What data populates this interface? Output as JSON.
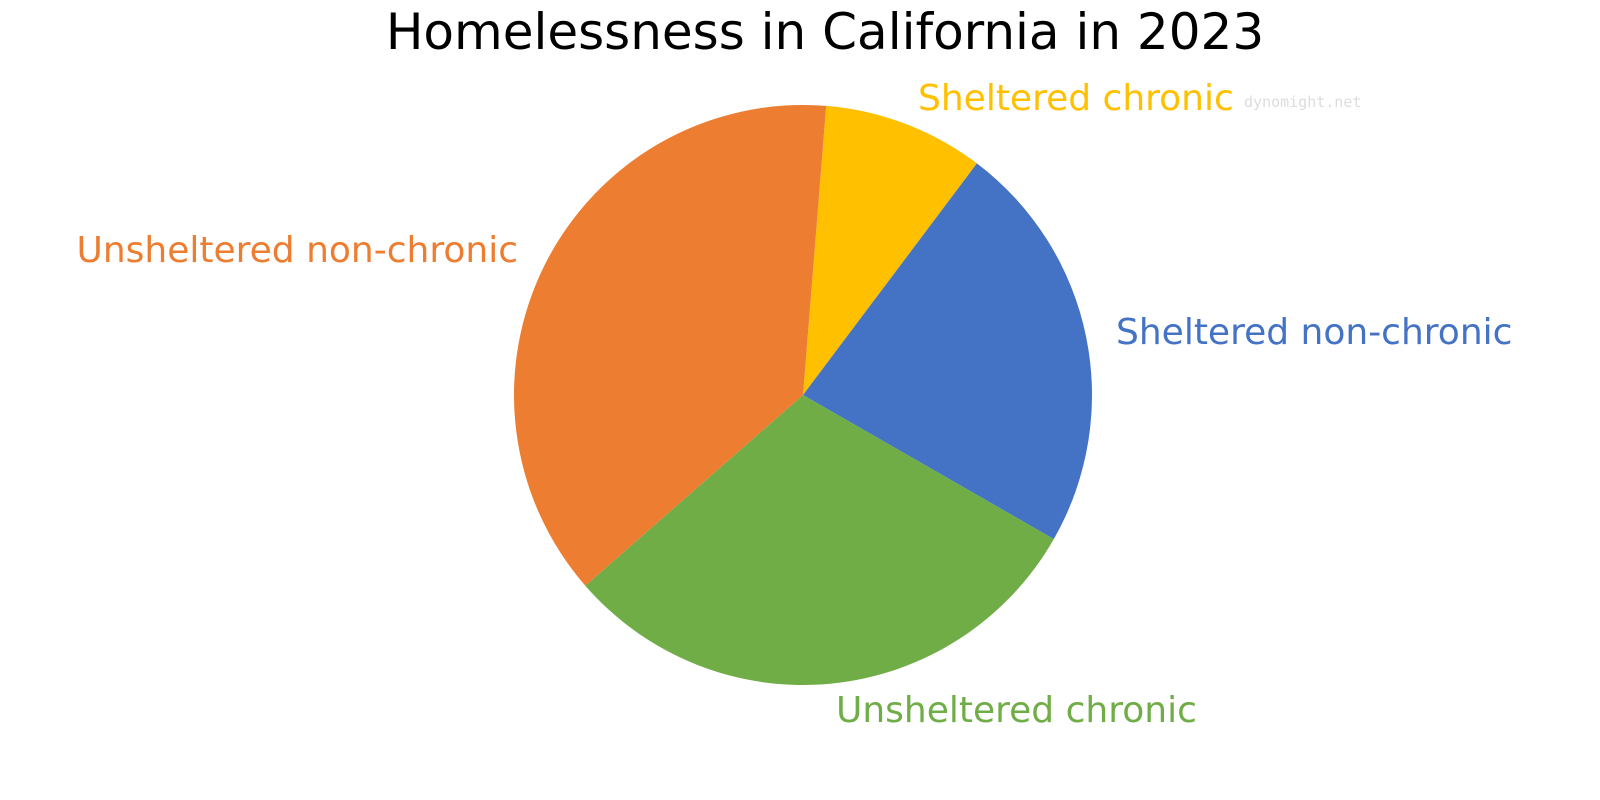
{
  "chart_data": {
    "type": "pie",
    "title": "Homelessness in California in 2023",
    "start_angle_deg": 4.6,
    "direction": "clockwise",
    "slices": [
      {
        "label": "Sheltered chronic",
        "value": 9.0,
        "color": "#FFC000"
      },
      {
        "label": "Sheltered non-chronic",
        "value": 23.0,
        "color": "#4472C4"
      },
      {
        "label": "Unsheltered chronic",
        "value": 30.3,
        "color": "#70AD47"
      },
      {
        "label": "Unsheltered non-chronic",
        "value": 37.7,
        "color": "#ED7D31"
      }
    ],
    "watermark": "dynomight.net"
  }
}
